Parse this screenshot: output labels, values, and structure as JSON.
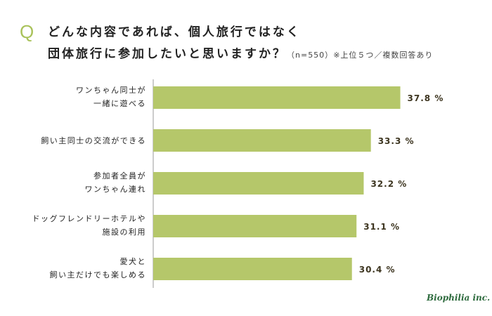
{
  "title": {
    "q_mark": "Q",
    "line1": "どんな内容であれば、個人旅行ではなく",
    "line2": "団体旅行に参加したいと思いますか？",
    "n": "（n=550）",
    "note": "※上位５つ／複数回答あり"
  },
  "chart_data": {
    "type": "bar",
    "orientation": "horizontal",
    "categories": [
      [
        "ワンちゃん同士が",
        "一緒に遊べる"
      ],
      [
        "飼い主同士の交流ができる"
      ],
      [
        "参加者全員が",
        "ワンちゃん連れ"
      ],
      [
        "ドッグフレンドリーホテルや",
        "施設の利用"
      ],
      [
        "愛犬と",
        "飼い主だけでも楽しめる"
      ]
    ],
    "values": [
      37.8,
      33.3,
      32.2,
      31.1,
      30.4
    ],
    "value_labels": [
      "37.8 %",
      "33.3 %",
      "32.2 %",
      "31.1 %",
      "30.4 %"
    ],
    "bar_color": "#b5c76a",
    "xlim": [
      0,
      40
    ],
    "grid": false
  },
  "logo": "Biophilia inc."
}
